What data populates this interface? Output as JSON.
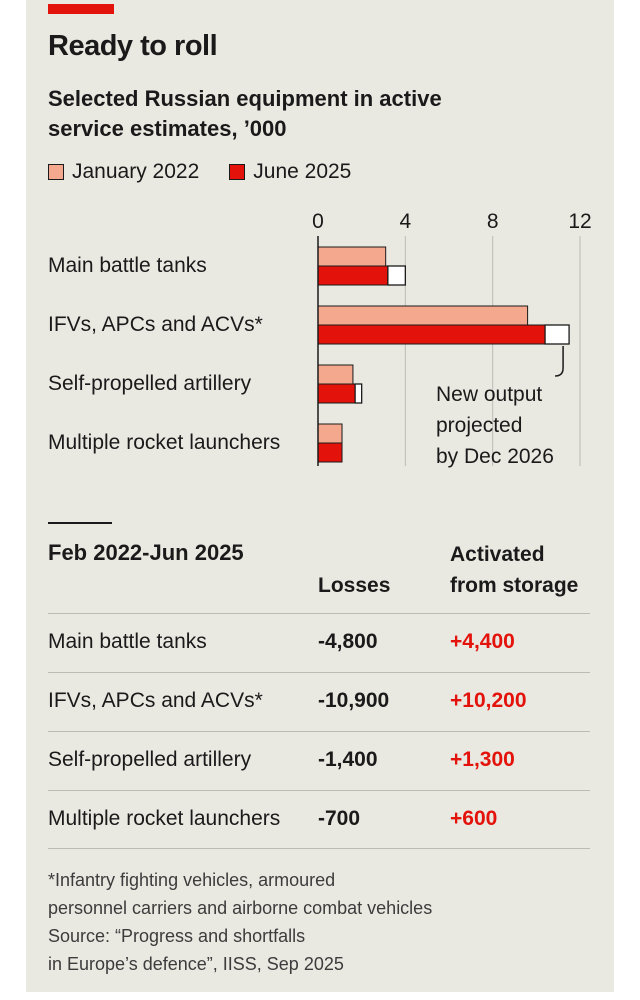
{
  "title": "Ready to roll",
  "subtitle": "Selected Russian equipment in active service estimates, ’000",
  "legend": {
    "jan2022": "January 2022",
    "jun2025": "June 2025",
    "jan2022_color": "#f4a88e",
    "jun2025_color": "#e3120b"
  },
  "annotation": [
    "New output",
    "projected",
    "by Dec 2026"
  ],
  "chart_data": {
    "type": "bar",
    "orientation": "horizontal",
    "title": "Selected Russian equipment in active service estimates, ’000",
    "categories": [
      "Main battle tanks",
      "IFVs, APCs and ACVs*",
      "Self-propelled artillery",
      "Multiple rocket launchers"
    ],
    "series": [
      {
        "name": "January 2022",
        "values": [
          3.1,
          9.6,
          1.6,
          1.1
        ]
      },
      {
        "name": "June 2025",
        "values": [
          3.2,
          10.4,
          1.7,
          1.1
        ]
      },
      {
        "name": "New output projected by Dec 2026",
        "values": [
          0.8,
          1.1,
          0.3,
          0.05
        ],
        "stacked_on": "June 2025"
      }
    ],
    "xlim": [
      0,
      12
    ],
    "xticks": [
      "0",
      "4",
      "8",
      "12"
    ],
    "xlabel": "",
    "ylabel": "",
    "grid": true
  },
  "table": {
    "title": "Feb 2022-Jun 2025",
    "col_losses": "Losses",
    "col_activated": [
      "Activated",
      "from storage"
    ],
    "rows": [
      {
        "label": "Main battle tanks",
        "losses": "-4,800",
        "activated": "+4,400"
      },
      {
        "label": "IFVs, APCs and ACVs*",
        "losses": "-10,900",
        "activated": "+10,200"
      },
      {
        "label": "Self-propelled artillery",
        "losses": "-1,400",
        "activated": "+1,300"
      },
      {
        "label": "Multiple rocket launchers",
        "losses": "-700",
        "activated": "+600"
      }
    ]
  },
  "footnote": [
    "*Infantry fighting vehicles, armoured",
    "personnel carriers and airborne combat vehicles",
    "Source: “Progress and shortfalls",
    "in Europe’s defence”, IISS, Sep 2025"
  ]
}
